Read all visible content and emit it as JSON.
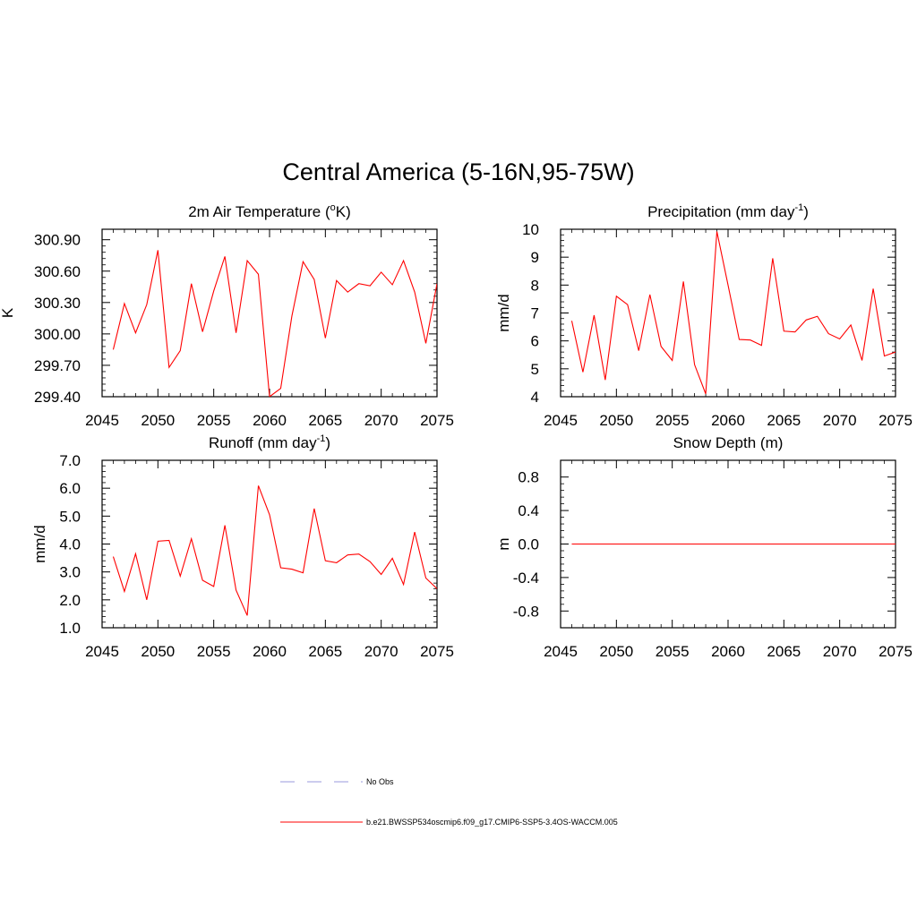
{
  "figure": {
    "title": "Central America (5-16N,95-75W)"
  },
  "chart_data": [
    {
      "type": "line",
      "title": "2m Air Temperature (",
      "title_sup": "o",
      "title_tail": "K)",
      "xlabel": "",
      "ylabel": "K",
      "xlim": [
        2045,
        2075
      ],
      "ylim": [
        299.4,
        301.0
      ],
      "xticks": [
        2045,
        2050,
        2055,
        2060,
        2065,
        2070,
        2075
      ],
      "yticks": [
        299.4,
        299.7,
        300.0,
        300.3,
        300.6,
        300.9
      ],
      "ytick_labels": [
        "299.40",
        "299.70",
        "300.00",
        "300.30",
        "300.60",
        "300.90"
      ],
      "x": [
        2046,
        2047,
        2048,
        2049,
        2050,
        2051,
        2052,
        2053,
        2054,
        2055,
        2056,
        2057,
        2058,
        2059,
        2060,
        2061,
        2062,
        2063,
        2064,
        2065,
        2066,
        2067,
        2068,
        2069,
        2070,
        2071,
        2072,
        2073,
        2074,
        2075
      ],
      "series": [
        {
          "name": "b.e21.BWSSP534oscmip6.f09_g17.CMIP6-SSP5-3.4OS-WACCM.005",
          "color": "#ff0000",
          "values": [
            299.85,
            300.29,
            300.01,
            300.28,
            300.8,
            299.68,
            299.84,
            300.48,
            300.02,
            300.41,
            300.74,
            300.01,
            300.7,
            300.57,
            299.4,
            299.48,
            300.17,
            300.69,
            300.52,
            299.96,
            300.51,
            300.4,
            300.48,
            300.46,
            300.59,
            300.47,
            300.7,
            300.4,
            299.91,
            300.48
          ]
        }
      ]
    },
    {
      "type": "line",
      "title": "Precipitation (mm day",
      "title_sup": "-1",
      "title_tail": ")",
      "xlabel": "",
      "ylabel": "mm/d",
      "xlim": [
        2045,
        2075
      ],
      "ylim": [
        4,
        10
      ],
      "xticks": [
        2045,
        2050,
        2055,
        2060,
        2065,
        2070,
        2075
      ],
      "yticks": [
        4,
        5,
        6,
        7,
        8,
        9,
        10
      ],
      "ytick_labels": [
        "4",
        "5",
        "6",
        "7",
        "8",
        "9",
        "10"
      ],
      "x": [
        2046,
        2047,
        2048,
        2049,
        2050,
        2051,
        2052,
        2053,
        2054,
        2055,
        2056,
        2057,
        2058,
        2059,
        2060,
        2061,
        2062,
        2063,
        2064,
        2065,
        2066,
        2067,
        2068,
        2069,
        2070,
        2071,
        2072,
        2073,
        2074,
        2075
      ],
      "series": [
        {
          "name": "b.e21.BWSSP534oscmip6.f09_g17.CMIP6-SSP5-3.4OS-WACCM.005",
          "color": "#ff0000",
          "values": [
            6.72,
            4.88,
            6.92,
            4.6,
            7.6,
            7.3,
            5.65,
            7.66,
            5.8,
            5.3,
            8.13,
            5.15,
            4.1,
            9.92,
            8.0,
            6.05,
            6.03,
            5.84,
            8.96,
            6.35,
            6.32,
            6.75,
            6.88,
            6.26,
            6.07,
            6.57,
            5.3,
            7.87,
            5.46,
            5.6
          ]
        }
      ]
    },
    {
      "type": "line",
      "title": "Runoff (mm day",
      "title_sup": "-1",
      "title_tail": ")",
      "xlabel": "",
      "ylabel": "mm/d",
      "xlim": [
        2045,
        2075
      ],
      "ylim": [
        1.0,
        7.0
      ],
      "xticks": [
        2045,
        2050,
        2055,
        2060,
        2065,
        2070,
        2075
      ],
      "yticks": [
        1,
        2,
        3,
        4,
        5,
        6,
        7
      ],
      "ytick_labels": [
        "1.0",
        "2.0",
        "3.0",
        "4.0",
        "5.0",
        "6.0",
        "7.0"
      ],
      "x": [
        2046,
        2047,
        2048,
        2049,
        2050,
        2051,
        2052,
        2053,
        2054,
        2055,
        2056,
        2057,
        2058,
        2059,
        2060,
        2061,
        2062,
        2063,
        2064,
        2065,
        2066,
        2067,
        2068,
        2069,
        2070,
        2071,
        2072,
        2073,
        2074,
        2075
      ],
      "series": [
        {
          "name": "b.e21.BWSSP534oscmip6.f09_g17.CMIP6-SSP5-3.4OS-WACCM.005",
          "color": "#ff0000",
          "values": [
            3.55,
            2.3,
            3.65,
            2.0,
            4.1,
            4.13,
            2.85,
            4.19,
            2.7,
            2.48,
            4.67,
            2.35,
            1.44,
            6.09,
            5.05,
            3.15,
            3.1,
            2.97,
            5.27,
            3.4,
            3.33,
            3.61,
            3.64,
            3.37,
            2.91,
            3.49,
            2.55,
            4.43,
            2.78,
            2.4
          ]
        }
      ]
    },
    {
      "type": "line",
      "title": "Snow Depth (m)",
      "title_sup": "",
      "title_tail": "",
      "xlabel": "",
      "ylabel": "m",
      "xlim": [
        2045,
        2075
      ],
      "ylim": [
        -1.0,
        1.0
      ],
      "xticks": [
        2045,
        2050,
        2055,
        2060,
        2065,
        2070,
        2075
      ],
      "yticks": [
        -0.8,
        -0.4,
        0.0,
        0.4,
        0.8
      ],
      "ytick_labels": [
        "-0.8",
        "-0.4",
        "0.0",
        "0.4",
        "0.8"
      ],
      "x": [
        2046,
        2047,
        2048,
        2049,
        2050,
        2051,
        2052,
        2053,
        2054,
        2055,
        2056,
        2057,
        2058,
        2059,
        2060,
        2061,
        2062,
        2063,
        2064,
        2065,
        2066,
        2067,
        2068,
        2069,
        2070,
        2071,
        2072,
        2073,
        2074,
        2075
      ],
      "series": [
        {
          "name": "b.e21.BWSSP534oscmip6.f09_g17.CMIP6-SSP5-3.4OS-WACCM.005",
          "color": "#ff0000",
          "values": [
            0,
            0,
            0,
            0,
            0,
            0,
            0,
            0,
            0,
            0,
            0,
            0,
            0,
            0,
            0,
            0,
            0,
            0,
            0,
            0,
            0,
            0,
            0,
            0,
            0,
            0,
            0,
            0,
            0,
            0
          ]
        }
      ]
    }
  ],
  "legend": {
    "items": [
      {
        "label": "No Obs",
        "color": "#9999dd",
        "style": "dashed"
      },
      {
        "label": "b.e21.BWSSP534oscmip6.f09_g17.CMIP6-SSP5-3.4OS-WACCM.005",
        "color": "#ff0000",
        "style": "solid"
      }
    ]
  }
}
